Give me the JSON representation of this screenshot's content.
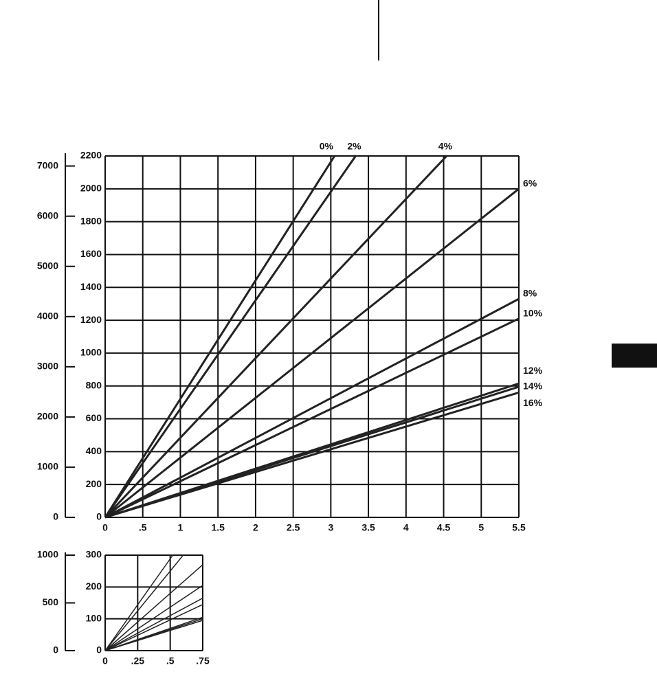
{
  "charts": [
    {
      "chart_data": {
        "type": "line",
        "grid": true,
        "xlim": [
          0,
          5.5
        ],
        "xticks": [
          0,
          {
            "value": 0.5,
            "label": ".5"
          },
          1,
          1.5,
          2,
          2.5,
          3,
          3.5,
          4,
          4.5,
          5,
          5.5
        ],
        "ylim": [
          0,
          2200
        ],
        "yticks": [
          0,
          200,
          400,
          600,
          800,
          1000,
          1200,
          1400,
          1600,
          1800,
          2000,
          2200
        ],
        "y2lim": [
          0,
          7200
        ],
        "y2ticks": [
          0,
          1000,
          2000,
          3000,
          4000,
          5000,
          6000,
          7000
        ],
        "series": [
          {
            "name": "0%",
            "color": "#222",
            "x": [
              0,
              3.05
            ],
            "values": [
              0,
              2200
            ]
          },
          {
            "name": "2%",
            "color": "#222",
            "x": [
              0,
              3.33
            ],
            "values": [
              0,
              2200
            ]
          },
          {
            "name": "4%",
            "color": "#222",
            "x": [
              0,
              4.54
            ],
            "values": [
              0,
              2200
            ]
          },
          {
            "name": "6%",
            "color": "#222",
            "x": [
              0,
              5.5
            ],
            "values": [
              0,
              2000
            ]
          },
          {
            "name": "8%",
            "color": "#222",
            "x": [
              0,
              5.5
            ],
            "values": [
              0,
              1330
            ]
          },
          {
            "name": "10%",
            "color": "#222",
            "x": [
              0,
              5.5
            ],
            "values": [
              0,
              1210
            ]
          },
          {
            "name": "12%",
            "color": "#222",
            "x": [
              0,
              5.5
            ],
            "values": [
              0,
              815
            ]
          },
          {
            "name": "14%",
            "color": "#222",
            "x": [
              0,
              5.5
            ],
            "values": [
              0,
              795
            ]
          },
          {
            "name": "16%",
            "color": "#222",
            "x": [
              0,
              5.5
            ],
            "values": [
              0,
              760
            ]
          }
        ]
      }
    },
    {
      "chart_data": {
        "type": "line",
        "grid": true,
        "xlim": [
          0,
          0.75
        ],
        "xticks": [
          0,
          {
            "value": 0.25,
            "label": ".25"
          },
          {
            "value": 0.5,
            "label": ".5"
          },
          {
            "value": 0.75,
            "label": ".75"
          }
        ],
        "ylim": [
          0,
          300
        ],
        "yticks": [
          0,
          100,
          200,
          300
        ],
        "y2lim": [
          0,
          1000
        ],
        "y2ticks": [
          0,
          500,
          1000
        ],
        "series": [
          {
            "color": "#222",
            "x": [
              0,
              0.52
            ],
            "values": [
              0,
              300
            ]
          },
          {
            "color": "#222",
            "x": [
              0,
              0.6
            ],
            "values": [
              0,
              300
            ]
          },
          {
            "color": "#222",
            "x": [
              0,
              0.75
            ],
            "values": [
              0,
              270
            ]
          },
          {
            "color": "#222",
            "x": [
              0,
              0.75
            ],
            "values": [
              0,
              205
            ]
          },
          {
            "color": "#222",
            "x": [
              0,
              0.75
            ],
            "values": [
              0,
              165
            ]
          },
          {
            "color": "#222",
            "x": [
              0,
              0.75
            ],
            "values": [
              0,
              145
            ]
          },
          {
            "color": "#222",
            "x": [
              0,
              0.75
            ],
            "values": [
              0,
              105
            ]
          },
          {
            "color": "#222",
            "x": [
              0,
              0.75
            ],
            "values": [
              0,
              100
            ]
          },
          {
            "color": "#222",
            "x": [
              0,
              0.75
            ],
            "values": [
              0,
              95
            ]
          }
        ]
      }
    }
  ]
}
